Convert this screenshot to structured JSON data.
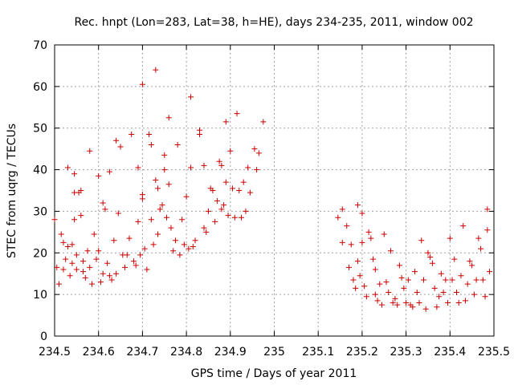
{
  "chart_data": {
    "type": "scatter",
    "title": "Rec. hnpt (Lon=283, Lat=38, h=HE), days 234-235, 2011, window 002",
    "xlabel": "GPS time / Days of year 2011",
    "ylabel": "STEC from uqrg / TECUs",
    "xlim": [
      234.5,
      235.5
    ],
    "ylim": [
      0,
      70
    ],
    "xticks": [
      "234.5",
      "234.6",
      "234.7",
      "234.8",
      "234.9",
      "235",
      "235.1",
      "235.2",
      "235.3",
      "235.4",
      "235.5"
    ],
    "yticks": [
      "0",
      "10",
      "20",
      "30",
      "40",
      "50",
      "60",
      "70"
    ],
    "grid": true,
    "marker": "+",
    "color": "#cc0000",
    "points": [
      [
        234.5,
        28.0
      ],
      [
        234.505,
        16.5
      ],
      [
        234.51,
        12.5
      ],
      [
        234.515,
        24.5
      ],
      [
        234.52,
        22.5
      ],
      [
        234.52,
        16.0
      ],
      [
        234.525,
        18.5
      ],
      [
        234.53,
        40.5
      ],
      [
        234.53,
        21.5
      ],
      [
        234.535,
        14.5
      ],
      [
        234.54,
        17.5
      ],
      [
        234.54,
        22.0
      ],
      [
        234.545,
        39.0
      ],
      [
        234.545,
        28.0
      ],
      [
        234.545,
        34.5
      ],
      [
        234.55,
        19.5
      ],
      [
        234.55,
        16.0
      ],
      [
        234.555,
        34.5
      ],
      [
        234.56,
        35.0
      ],
      [
        234.56,
        29.0
      ],
      [
        234.565,
        18.0
      ],
      [
        234.565,
        15.5
      ],
      [
        234.57,
        14.0
      ],
      [
        234.575,
        20.5
      ],
      [
        234.58,
        44.5
      ],
      [
        234.58,
        16.5
      ],
      [
        234.585,
        12.5
      ],
      [
        234.59,
        24.5
      ],
      [
        234.595,
        18.5
      ],
      [
        234.6,
        38.5
      ],
      [
        234.6,
        20.5
      ],
      [
        234.605,
        13.0
      ],
      [
        234.61,
        32.0
      ],
      [
        234.61,
        15.0
      ],
      [
        234.615,
        30.5
      ],
      [
        234.62,
        17.5
      ],
      [
        234.625,
        39.5
      ],
      [
        234.625,
        14.5
      ],
      [
        234.63,
        13.5
      ],
      [
        234.635,
        23.0
      ],
      [
        234.64,
        47.0
      ],
      [
        234.64,
        15.0
      ],
      [
        234.645,
        29.5
      ],
      [
        234.65,
        45.5
      ],
      [
        234.655,
        19.5
      ],
      [
        234.66,
        16.5
      ],
      [
        234.665,
        19.5
      ],
      [
        234.67,
        23.5
      ],
      [
        234.675,
        48.5
      ],
      [
        234.68,
        18.0
      ],
      [
        234.685,
        17.0
      ],
      [
        234.69,
        40.5
      ],
      [
        234.69,
        27.5
      ],
      [
        234.695,
        19.5
      ],
      [
        234.7,
        60.5
      ],
      [
        234.7,
        34.0
      ],
      [
        234.7,
        33.0
      ],
      [
        234.705,
        21.0
      ],
      [
        234.71,
        16.0
      ],
      [
        234.715,
        48.5
      ],
      [
        234.72,
        46.0
      ],
      [
        234.72,
        28.0
      ],
      [
        234.725,
        22.0
      ],
      [
        234.73,
        64.0
      ],
      [
        234.73,
        37.5
      ],
      [
        234.735,
        35.5
      ],
      [
        234.735,
        24.5
      ],
      [
        234.74,
        30.5
      ],
      [
        234.745,
        31.5
      ],
      [
        234.75,
        43.5
      ],
      [
        234.75,
        40.0
      ],
      [
        234.755,
        28.5
      ],
      [
        234.76,
        52.5
      ],
      [
        234.76,
        36.5
      ],
      [
        234.765,
        26.0
      ],
      [
        234.77,
        20.5
      ],
      [
        234.775,
        23.0
      ],
      [
        234.78,
        46.0
      ],
      [
        234.785,
        19.5
      ],
      [
        234.79,
        28.0
      ],
      [
        234.795,
        22.0
      ],
      [
        234.8,
        33.5
      ],
      [
        234.805,
        21.0
      ],
      [
        234.81,
        57.5
      ],
      [
        234.81,
        40.5
      ],
      [
        234.815,
        21.5
      ],
      [
        234.82,
        23.0
      ],
      [
        234.83,
        49.5
      ],
      [
        234.83,
        48.5
      ],
      [
        234.84,
        41.0
      ],
      [
        234.84,
        26.0
      ],
      [
        234.845,
        25.0
      ],
      [
        234.85,
        30.0
      ],
      [
        234.855,
        35.5
      ],
      [
        234.86,
        35.0
      ],
      [
        234.865,
        27.5
      ],
      [
        234.87,
        32.5
      ],
      [
        234.875,
        42.0
      ],
      [
        234.88,
        41.0
      ],
      [
        234.88,
        30.5
      ],
      [
        234.885,
        31.5
      ],
      [
        234.89,
        51.5
      ],
      [
        234.89,
        37.0
      ],
      [
        234.895,
        29.0
      ],
      [
        234.9,
        44.5
      ],
      [
        234.905,
        35.5
      ],
      [
        234.91,
        28.5
      ],
      [
        234.915,
        53.5
      ],
      [
        234.92,
        35.0
      ],
      [
        234.925,
        28.5
      ],
      [
        234.93,
        37.0
      ],
      [
        234.935,
        30.0
      ],
      [
        234.94,
        40.5
      ],
      [
        234.945,
        34.5
      ],
      [
        234.955,
        45.0
      ],
      [
        234.96,
        40.0
      ],
      [
        234.965,
        44.0
      ],
      [
        234.975,
        51.5
      ],
      [
        235.145,
        28.5
      ],
      [
        235.155,
        30.5
      ],
      [
        235.155,
        22.5
      ],
      [
        235.165,
        26.5
      ],
      [
        235.17,
        16.5
      ],
      [
        235.175,
        22.0
      ],
      [
        235.18,
        13.5
      ],
      [
        235.185,
        11.5
      ],
      [
        235.19,
        31.5
      ],
      [
        235.19,
        18.0
      ],
      [
        235.195,
        14.5
      ],
      [
        235.2,
        29.5
      ],
      [
        235.2,
        22.5
      ],
      [
        235.205,
        12.0
      ],
      [
        235.21,
        9.5
      ],
      [
        235.215,
        25.0
      ],
      [
        235.22,
        23.5
      ],
      [
        235.225,
        18.5
      ],
      [
        235.23,
        16.0
      ],
      [
        235.23,
        10.0
      ],
      [
        235.235,
        8.5
      ],
      [
        235.24,
        12.5
      ],
      [
        235.245,
        7.5
      ],
      [
        235.25,
        24.5
      ],
      [
        235.255,
        13.0
      ],
      [
        235.26,
        10.5
      ],
      [
        235.265,
        20.5
      ],
      [
        235.27,
        8.0
      ],
      [
        235.275,
        9.0
      ],
      [
        235.28,
        7.5
      ],
      [
        235.285,
        17.0
      ],
      [
        235.29,
        14.0
      ],
      [
        235.295,
        11.5
      ],
      [
        235.3,
        8.0
      ],
      [
        235.305,
        13.5
      ],
      [
        235.31,
        7.5
      ],
      [
        235.315,
        7.0
      ],
      [
        235.32,
        15.5
      ],
      [
        235.325,
        10.5
      ],
      [
        235.33,
        8.0
      ],
      [
        235.335,
        23.0
      ],
      [
        235.34,
        13.5
      ],
      [
        235.345,
        6.5
      ],
      [
        235.35,
        20.0
      ],
      [
        235.355,
        19.0
      ],
      [
        235.36,
        17.5
      ],
      [
        235.365,
        11.5
      ],
      [
        235.37,
        7.0
      ],
      [
        235.375,
        9.5
      ],
      [
        235.38,
        15.0
      ],
      [
        235.385,
        10.5
      ],
      [
        235.39,
        13.5
      ],
      [
        235.395,
        8.0
      ],
      [
        235.4,
        23.5
      ],
      [
        235.405,
        13.5
      ],
      [
        235.41,
        18.5
      ],
      [
        235.415,
        10.5
      ],
      [
        235.42,
        8.0
      ],
      [
        235.425,
        14.5
      ],
      [
        235.43,
        26.5
      ],
      [
        235.435,
        8.5
      ],
      [
        235.44,
        12.5
      ],
      [
        235.445,
        18.0
      ],
      [
        235.45,
        17.0
      ],
      [
        235.455,
        10.0
      ],
      [
        235.46,
        13.5
      ],
      [
        235.465,
        23.5
      ],
      [
        235.47,
        21.0
      ],
      [
        235.475,
        13.5
      ],
      [
        235.48,
        9.5
      ],
      [
        235.485,
        30.5
      ],
      [
        235.485,
        25.5
      ],
      [
        235.49,
        15.5
      ]
    ]
  }
}
